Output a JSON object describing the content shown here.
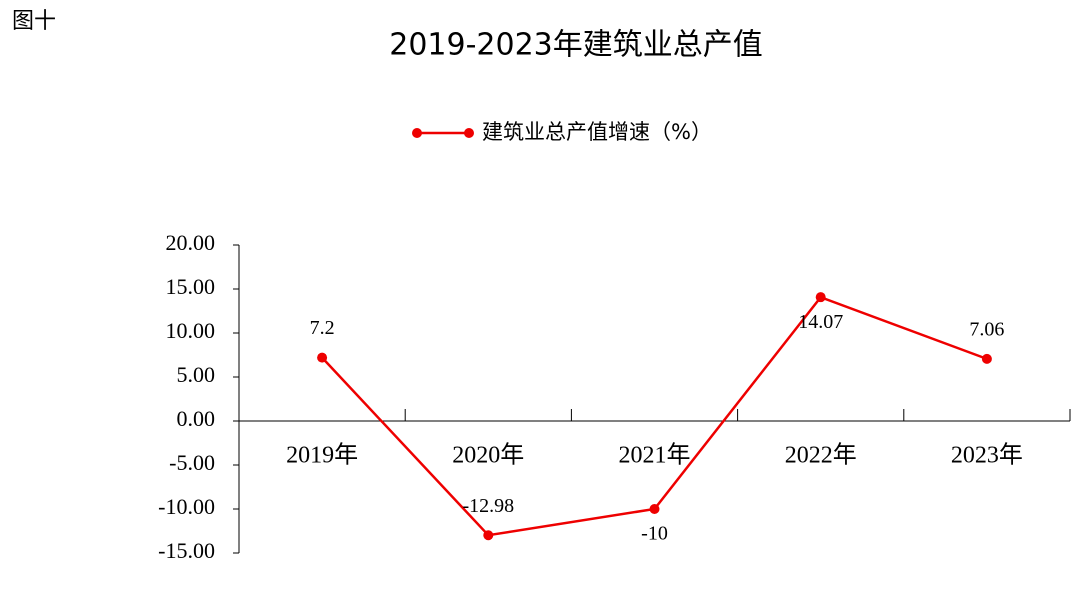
{
  "chart_data": {
    "type": "line",
    "figure_label": "图十",
    "title": "2019-2023年建筑业总产值",
    "categories": [
      "2019年",
      "2020年",
      "2021年",
      "2022年",
      "2023年"
    ],
    "series": [
      {
        "name": "建筑业总产值增速（%）",
        "color": "#ee0000",
        "values": [
          7.2,
          -12.98,
          -10,
          14.07,
          7.06
        ]
      }
    ],
    "ylim": [
      -15,
      20
    ],
    "yticks": [
      {
        "value": 20,
        "label": "20.00"
      },
      {
        "value": 15,
        "label": "15.00"
      },
      {
        "value": 10,
        "label": "10.00"
      },
      {
        "value": 5,
        "label": "5.00"
      },
      {
        "value": 0,
        "label": "0.00"
      },
      {
        "value": -5,
        "label": "-5.00"
      },
      {
        "value": -10,
        "label": "-10.00"
      },
      {
        "value": -15,
        "label": "-15.00"
      }
    ],
    "grid": false,
    "legend": "top"
  }
}
